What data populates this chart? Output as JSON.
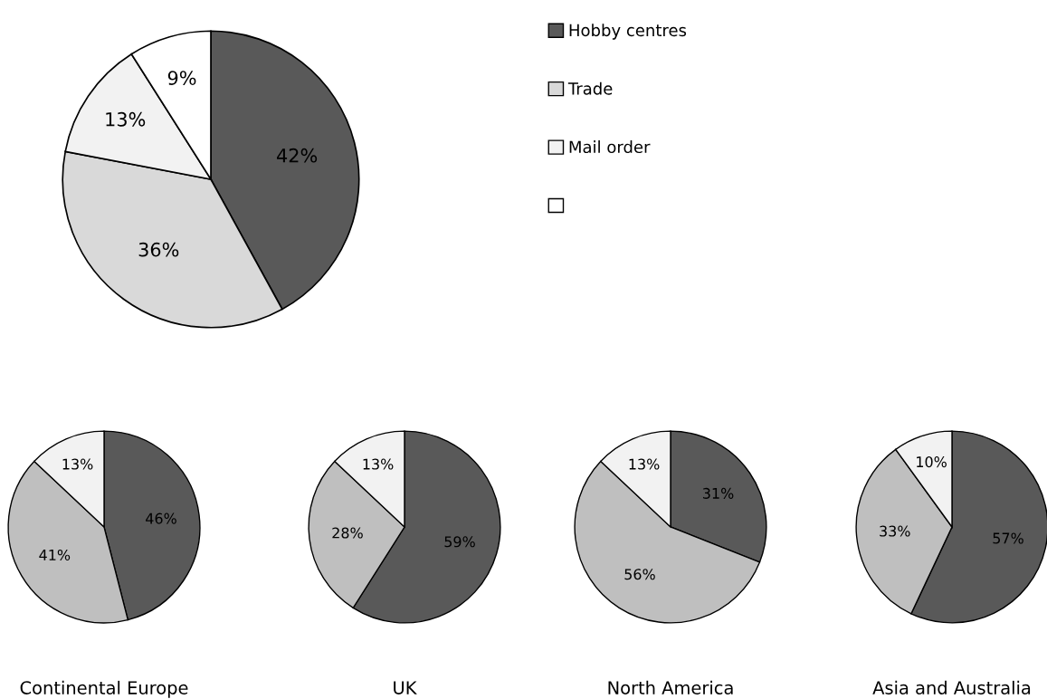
{
  "chart_data": [
    {
      "type": "pie",
      "categories": [
        "Hobby centres",
        "Trade",
        "Mail order",
        null
      ],
      "values": [
        42,
        36,
        13,
        9
      ],
      "value_labels": [
        "42%",
        "36%",
        "13%",
        "9%"
      ],
      "colors": [
        "#595959",
        "#d9d9d9",
        "#f2f2f2",
        "#ffffff"
      ],
      "legend": "right"
    },
    {
      "type": "pie",
      "title": "Continental Europe",
      "categories": [
        null,
        null,
        null
      ],
      "values": [
        46,
        41,
        13
      ],
      "value_labels": [
        "46%",
        "41%",
        "13%"
      ],
      "colors": [
        "#595959",
        "#bfbfbf",
        "#f2f2f2"
      ]
    },
    {
      "type": "pie",
      "title": "UK",
      "categories": [
        null,
        null,
        null
      ],
      "values": [
        59,
        28,
        13
      ],
      "value_labels": [
        "59%",
        "28%",
        "13%"
      ],
      "colors": [
        "#595959",
        "#bfbfbf",
        "#f2f2f2"
      ]
    },
    {
      "type": "pie",
      "title": "North America",
      "categories": [
        null,
        null,
        null
      ],
      "values": [
        31,
        56,
        13
      ],
      "value_labels": [
        "31%",
        "56%",
        "13%"
      ],
      "colors": [
        "#595959",
        "#bfbfbf",
        "#f2f2f2"
      ]
    },
    {
      "type": "pie",
      "title": "Asia and Australia",
      "categories": [
        null,
        null,
        null
      ],
      "values": [
        57,
        33,
        10
      ],
      "value_labels": [
        "57%",
        "33%",
        "10%"
      ],
      "colors": [
        "#595959",
        "#bfbfbf",
        "#f2f2f2"
      ]
    }
  ]
}
